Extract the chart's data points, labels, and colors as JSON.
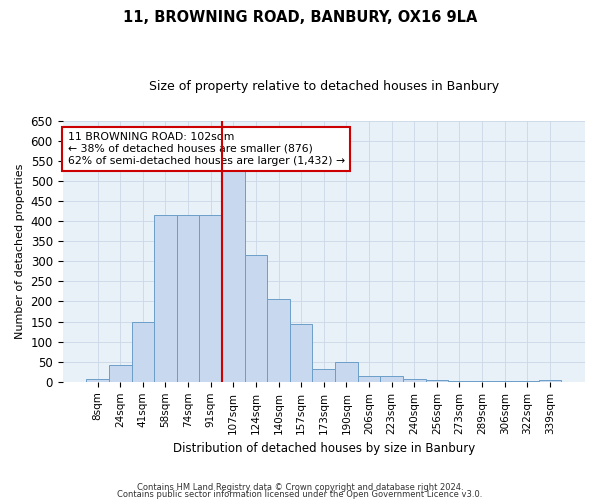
{
  "title": "11, BROWNING ROAD, BANBURY, OX16 9LA",
  "subtitle": "Size of property relative to detached houses in Banbury",
  "xlabel": "Distribution of detached houses by size in Banbury",
  "ylabel": "Number of detached properties",
  "bar_color": "#c8d9ef",
  "bar_edge_color": "#6b9ec8",
  "categories": [
    "8sqm",
    "24sqm",
    "41sqm",
    "58sqm",
    "74sqm",
    "91sqm",
    "107sqm",
    "124sqm",
    "140sqm",
    "157sqm",
    "173sqm",
    "190sqm",
    "206sqm",
    "223sqm",
    "240sqm",
    "256sqm",
    "273sqm",
    "289sqm",
    "306sqm",
    "322sqm",
    "339sqm"
  ],
  "values": [
    8,
    43,
    150,
    415,
    415,
    415,
    530,
    315,
    205,
    143,
    33,
    50,
    15,
    15,
    8,
    5,
    3,
    3,
    3,
    2,
    5
  ],
  "vline_x": 5.5,
  "vline_color": "#cc0000",
  "annotation_text": "11 BROWNING ROAD: 102sqm\n← 38% of detached houses are smaller (876)\n62% of semi-detached houses are larger (1,432) →",
  "annotation_box_color": "#ffffff",
  "annotation_box_edge": "#cc0000",
  "ylim": [
    0,
    650
  ],
  "yticks": [
    0,
    50,
    100,
    150,
    200,
    250,
    300,
    350,
    400,
    450,
    500,
    550,
    600,
    650
  ],
  "footer1": "Contains HM Land Registry data © Crown copyright and database right 2024.",
  "footer2": "Contains public sector information licensed under the Open Government Licence v3.0.",
  "grid_color": "#ccd8e8",
  "background_color": "#e8f0f8"
}
